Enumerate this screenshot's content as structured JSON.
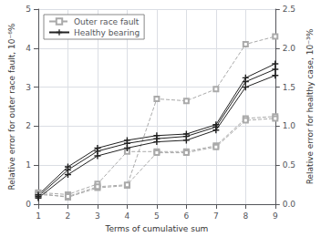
{
  "chart_data": {
    "type": "line",
    "xlabel": "Terms of cumulative sum",
    "ylabel": "Relative error for outer race fault, 10⁻⁶%",
    "y2label": "Relative error for healthy case, 10⁻³%",
    "x": [
      1,
      2,
      3,
      4,
      5,
      6,
      7,
      8,
      9
    ],
    "xlim": [
      1,
      9
    ],
    "xticks": [
      1,
      2,
      3,
      4,
      5,
      6,
      7,
      8,
      9
    ],
    "ylim": [
      0,
      5
    ],
    "yticks": [
      0,
      1,
      2,
      3,
      4,
      5
    ],
    "y2lim": [
      0,
      2.5
    ],
    "y2ticks": [
      {
        "value": 0,
        "label": "0.0"
      },
      0.5,
      {
        "value": 1,
        "label": "1.0"
      },
      1.5,
      {
        "value": 2,
        "label": "2.0"
      },
      2.5
    ],
    "grid": true,
    "legend": "upper left",
    "series": [
      {
        "name": "Outer race fault",
        "color": "#aaaaaa",
        "marker": "square",
        "line_style": "dashed",
        "values": [
          0.28,
          0.18,
          0.42,
          0.48,
          2.7,
          2.65,
          2.95,
          4.1,
          4.3
        ]
      },
      {
        "name": "Outer race fault",
        "color": "#aaaaaa",
        "marker": "square",
        "line_style": "dashed",
        "values": [
          0.3,
          0.25,
          0.52,
          1.35,
          1.35,
          1.35,
          1.5,
          2.2,
          2.25
        ]
      },
      {
        "name": "Outer race fault",
        "color": "#aaaaaa",
        "marker": "square",
        "line_style": "dashed",
        "values": [
          0.25,
          0.2,
          0.45,
          0.5,
          1.32,
          1.32,
          1.47,
          2.15,
          2.2
        ]
      },
      {
        "name": "Healthy bearing",
        "color": "#222222",
        "marker": "plus",
        "line_style": "solid",
        "axis": "y2",
        "values": [
          0.12,
          0.48,
          0.72,
          0.82,
          0.88,
          0.9,
          1.02,
          1.62,
          1.8
        ]
      },
      {
        "name": "Healthy bearing",
        "color": "#222222",
        "marker": "plus",
        "line_style": "solid",
        "axis": "y2",
        "values": [
          0.1,
          0.44,
          0.68,
          0.78,
          0.84,
          0.87,
          0.99,
          1.57,
          1.73
        ]
      },
      {
        "name": "Healthy bearing",
        "color": "#222222",
        "marker": "plus",
        "line_style": "solid",
        "axis": "y2",
        "values": [
          0.08,
          0.38,
          0.62,
          0.72,
          0.8,
          0.82,
          0.95,
          1.5,
          1.65
        ]
      }
    ]
  }
}
